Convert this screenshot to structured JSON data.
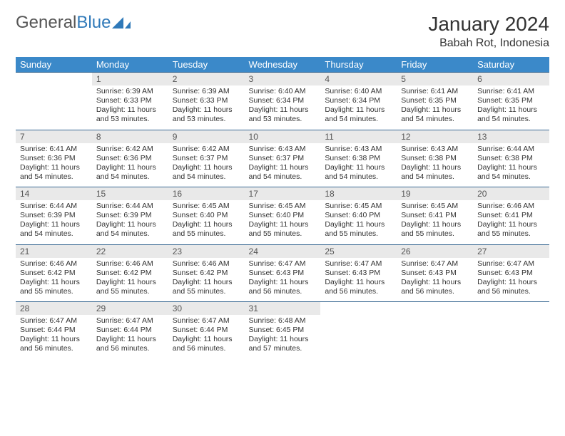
{
  "logo": {
    "word1": "General",
    "word2": "Blue"
  },
  "title": {
    "month": "January 2024",
    "location": "Babah Rot, Indonesia"
  },
  "colors": {
    "header_bg": "#3b89c9",
    "header_text": "#ffffff",
    "daynum_bg": "#e9e9e9",
    "rule": "#3b6a94",
    "logo_gray": "#555555",
    "logo_blue": "#2f79b9"
  },
  "weekdays": [
    "Sunday",
    "Monday",
    "Tuesday",
    "Wednesday",
    "Thursday",
    "Friday",
    "Saturday"
  ],
  "weeks": [
    {
      "nums": [
        "",
        "1",
        "2",
        "3",
        "4",
        "5",
        "6"
      ],
      "cells": [
        null,
        {
          "sunrise": "Sunrise: 6:39 AM",
          "sunset": "Sunset: 6:33 PM",
          "day1": "Daylight: 11 hours",
          "day2": "and 53 minutes."
        },
        {
          "sunrise": "Sunrise: 6:39 AM",
          "sunset": "Sunset: 6:33 PM",
          "day1": "Daylight: 11 hours",
          "day2": "and 53 minutes."
        },
        {
          "sunrise": "Sunrise: 6:40 AM",
          "sunset": "Sunset: 6:34 PM",
          "day1": "Daylight: 11 hours",
          "day2": "and 53 minutes."
        },
        {
          "sunrise": "Sunrise: 6:40 AM",
          "sunset": "Sunset: 6:34 PM",
          "day1": "Daylight: 11 hours",
          "day2": "and 54 minutes."
        },
        {
          "sunrise": "Sunrise: 6:41 AM",
          "sunset": "Sunset: 6:35 PM",
          "day1": "Daylight: 11 hours",
          "day2": "and 54 minutes."
        },
        {
          "sunrise": "Sunrise: 6:41 AM",
          "sunset": "Sunset: 6:35 PM",
          "day1": "Daylight: 11 hours",
          "day2": "and 54 minutes."
        }
      ]
    },
    {
      "nums": [
        "7",
        "8",
        "9",
        "10",
        "11",
        "12",
        "13"
      ],
      "cells": [
        {
          "sunrise": "Sunrise: 6:41 AM",
          "sunset": "Sunset: 6:36 PM",
          "day1": "Daylight: 11 hours",
          "day2": "and 54 minutes."
        },
        {
          "sunrise": "Sunrise: 6:42 AM",
          "sunset": "Sunset: 6:36 PM",
          "day1": "Daylight: 11 hours",
          "day2": "and 54 minutes."
        },
        {
          "sunrise": "Sunrise: 6:42 AM",
          "sunset": "Sunset: 6:37 PM",
          "day1": "Daylight: 11 hours",
          "day2": "and 54 minutes."
        },
        {
          "sunrise": "Sunrise: 6:43 AM",
          "sunset": "Sunset: 6:37 PM",
          "day1": "Daylight: 11 hours",
          "day2": "and 54 minutes."
        },
        {
          "sunrise": "Sunrise: 6:43 AM",
          "sunset": "Sunset: 6:38 PM",
          "day1": "Daylight: 11 hours",
          "day2": "and 54 minutes."
        },
        {
          "sunrise": "Sunrise: 6:43 AM",
          "sunset": "Sunset: 6:38 PM",
          "day1": "Daylight: 11 hours",
          "day2": "and 54 minutes."
        },
        {
          "sunrise": "Sunrise: 6:44 AM",
          "sunset": "Sunset: 6:38 PM",
          "day1": "Daylight: 11 hours",
          "day2": "and 54 minutes."
        }
      ]
    },
    {
      "nums": [
        "14",
        "15",
        "16",
        "17",
        "18",
        "19",
        "20"
      ],
      "cells": [
        {
          "sunrise": "Sunrise: 6:44 AM",
          "sunset": "Sunset: 6:39 PM",
          "day1": "Daylight: 11 hours",
          "day2": "and 54 minutes."
        },
        {
          "sunrise": "Sunrise: 6:44 AM",
          "sunset": "Sunset: 6:39 PM",
          "day1": "Daylight: 11 hours",
          "day2": "and 54 minutes."
        },
        {
          "sunrise": "Sunrise: 6:45 AM",
          "sunset": "Sunset: 6:40 PM",
          "day1": "Daylight: 11 hours",
          "day2": "and 55 minutes."
        },
        {
          "sunrise": "Sunrise: 6:45 AM",
          "sunset": "Sunset: 6:40 PM",
          "day1": "Daylight: 11 hours",
          "day2": "and 55 minutes."
        },
        {
          "sunrise": "Sunrise: 6:45 AM",
          "sunset": "Sunset: 6:40 PM",
          "day1": "Daylight: 11 hours",
          "day2": "and 55 minutes."
        },
        {
          "sunrise": "Sunrise: 6:45 AM",
          "sunset": "Sunset: 6:41 PM",
          "day1": "Daylight: 11 hours",
          "day2": "and 55 minutes."
        },
        {
          "sunrise": "Sunrise: 6:46 AM",
          "sunset": "Sunset: 6:41 PM",
          "day1": "Daylight: 11 hours",
          "day2": "and 55 minutes."
        }
      ]
    },
    {
      "nums": [
        "21",
        "22",
        "23",
        "24",
        "25",
        "26",
        "27"
      ],
      "cells": [
        {
          "sunrise": "Sunrise: 6:46 AM",
          "sunset": "Sunset: 6:42 PM",
          "day1": "Daylight: 11 hours",
          "day2": "and 55 minutes."
        },
        {
          "sunrise": "Sunrise: 6:46 AM",
          "sunset": "Sunset: 6:42 PM",
          "day1": "Daylight: 11 hours",
          "day2": "and 55 minutes."
        },
        {
          "sunrise": "Sunrise: 6:46 AM",
          "sunset": "Sunset: 6:42 PM",
          "day1": "Daylight: 11 hours",
          "day2": "and 55 minutes."
        },
        {
          "sunrise": "Sunrise: 6:47 AM",
          "sunset": "Sunset: 6:43 PM",
          "day1": "Daylight: 11 hours",
          "day2": "and 56 minutes."
        },
        {
          "sunrise": "Sunrise: 6:47 AM",
          "sunset": "Sunset: 6:43 PM",
          "day1": "Daylight: 11 hours",
          "day2": "and 56 minutes."
        },
        {
          "sunrise": "Sunrise: 6:47 AM",
          "sunset": "Sunset: 6:43 PM",
          "day1": "Daylight: 11 hours",
          "day2": "and 56 minutes."
        },
        {
          "sunrise": "Sunrise: 6:47 AM",
          "sunset": "Sunset: 6:43 PM",
          "day1": "Daylight: 11 hours",
          "day2": "and 56 minutes."
        }
      ]
    },
    {
      "nums": [
        "28",
        "29",
        "30",
        "31",
        "",
        "",
        ""
      ],
      "cells": [
        {
          "sunrise": "Sunrise: 6:47 AM",
          "sunset": "Sunset: 6:44 PM",
          "day1": "Daylight: 11 hours",
          "day2": "and 56 minutes."
        },
        {
          "sunrise": "Sunrise: 6:47 AM",
          "sunset": "Sunset: 6:44 PM",
          "day1": "Daylight: 11 hours",
          "day2": "and 56 minutes."
        },
        {
          "sunrise": "Sunrise: 6:47 AM",
          "sunset": "Sunset: 6:44 PM",
          "day1": "Daylight: 11 hours",
          "day2": "and 56 minutes."
        },
        {
          "sunrise": "Sunrise: 6:48 AM",
          "sunset": "Sunset: 6:45 PM",
          "day1": "Daylight: 11 hours",
          "day2": "and 57 minutes."
        },
        null,
        null,
        null
      ]
    }
  ]
}
